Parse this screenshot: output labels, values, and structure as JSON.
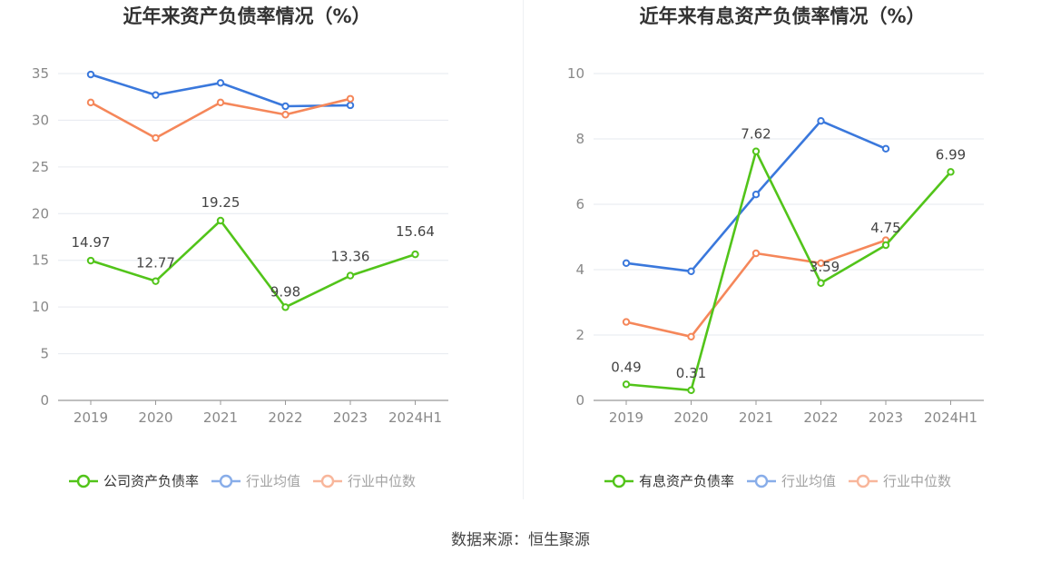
{
  "footer": {
    "source": "数据来源：恒生聚源"
  },
  "colors": {
    "company": "#52c41a",
    "industry_avg": "#3a78dc",
    "industry_median": "#f5875a",
    "grid": "#e6e9ef",
    "axis": "#999999"
  },
  "chart_data": [
    {
      "type": "line",
      "title": "近年来资产负债率情况（%）",
      "categories": [
        "2019",
        "2020",
        "2021",
        "2022",
        "2023",
        "2024H1"
      ],
      "ylim": [
        0,
        35
      ],
      "yticks": [
        0,
        5,
        10,
        15,
        20,
        25,
        30,
        35
      ],
      "ytick_labels": [
        "0",
        "5",
        "10",
        "15",
        "20",
        "25",
        "30",
        "35"
      ],
      "grid": true,
      "legend_position": "bottom",
      "series": [
        {
          "name": "公司资产负债率",
          "key": "company",
          "values": [
            14.97,
            12.77,
            19.25,
            9.98,
            13.36,
            15.64
          ],
          "labels": [
            "14.97",
            "12.77",
            "19.25",
            "9.98",
            "13.36",
            "15.64"
          ]
        },
        {
          "name": "行业均值",
          "key": "industry_avg",
          "values": [
            34.9,
            32.7,
            34.0,
            31.5,
            31.6,
            null
          ]
        },
        {
          "name": "行业中位数",
          "key": "industry_median",
          "values": [
            31.9,
            28.1,
            31.9,
            30.6,
            32.3,
            null
          ]
        }
      ]
    },
    {
      "type": "line",
      "title": "近年来有息资产负债率情况（%）",
      "categories": [
        "2019",
        "2020",
        "2021",
        "2022",
        "2023",
        "2024H1"
      ],
      "ylim": [
        0,
        10
      ],
      "yticks": [
        0,
        2,
        4,
        6,
        8,
        10
      ],
      "ytick_labels": [
        "0",
        "2",
        "4",
        "6",
        "8",
        "10"
      ],
      "grid": true,
      "legend_position": "bottom",
      "series": [
        {
          "name": "有息资产负债率",
          "key": "company",
          "values": [
            0.49,
            0.31,
            7.62,
            3.59,
            4.75,
            6.99
          ],
          "labels": [
            "0.49",
            "0.31",
            "7.62",
            "3.59",
            "4.75",
            "6.99"
          ]
        },
        {
          "name": "行业均值",
          "key": "industry_avg",
          "values": [
            4.2,
            3.95,
            6.3,
            8.55,
            7.7,
            null
          ]
        },
        {
          "name": "行业中位数",
          "key": "industry_median",
          "values": [
            2.4,
            1.95,
            4.5,
            4.2,
            4.9,
            null
          ]
        }
      ]
    }
  ]
}
